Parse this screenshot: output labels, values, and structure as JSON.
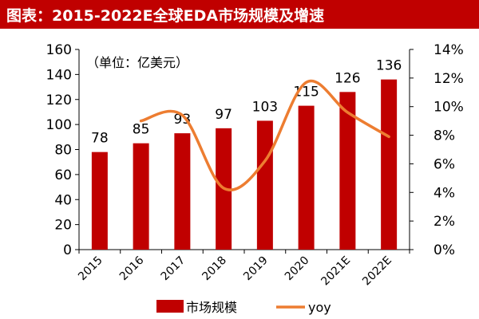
{
  "header": {
    "title": "图表：2015-2022E全球EDA市场规模及增速"
  },
  "chart_data": {
    "type": "bar",
    "title": "图表：2015-2022E全球EDA市场规模及增速",
    "unit_note": "（单位：亿美元）",
    "categories": [
      "2015",
      "2016",
      "2017",
      "2018",
      "2019",
      "2020",
      "2021E",
      "2022E"
    ],
    "series": [
      {
        "name": "市场规模",
        "type": "bar",
        "axis": "left",
        "color": "#c00000",
        "values": [
          78,
          85,
          93,
          97,
          103,
          115,
          126,
          136
        ],
        "labels": [
          "78",
          "85",
          "93",
          "97",
          "103",
          "115",
          "126",
          "136"
        ]
      },
      {
        "name": "yoy",
        "type": "line",
        "axis": "right",
        "color": "#ed7d31",
        "values": [
          null,
          9.0,
          9.4,
          4.3,
          6.2,
          11.7,
          9.6,
          7.9
        ]
      }
    ],
    "y_left": {
      "range": [
        0,
        160
      ],
      "ticks": [
        "0",
        "20",
        "40",
        "60",
        "80",
        "100",
        "120",
        "140",
        "160"
      ]
    },
    "y_right": {
      "range": [
        0,
        14
      ],
      "ticks": [
        "0%",
        "2%",
        "4%",
        "6%",
        "8%",
        "10%",
        "12%",
        "14%"
      ]
    },
    "grid": false,
    "legend_position": "bottom"
  }
}
